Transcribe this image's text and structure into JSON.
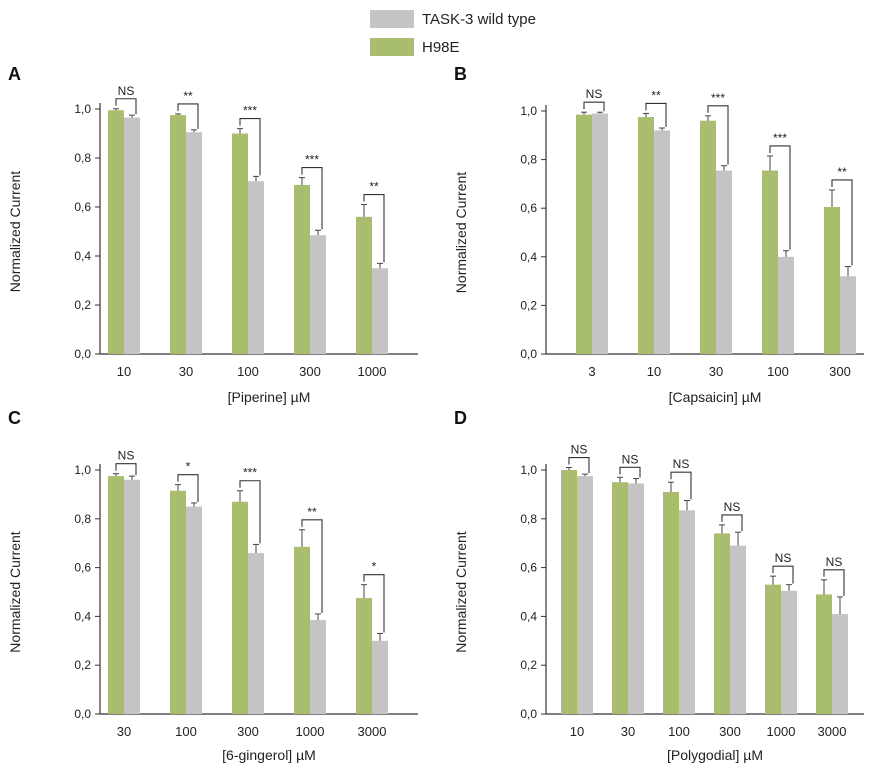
{
  "legend": {
    "items": [
      {
        "label": "TASK-3 wild type",
        "color": "#c4c4c4"
      },
      {
        "label": "H98E",
        "color": "#a8bd6e"
      }
    ]
  },
  "colors": {
    "h98e": "#a8bd6e",
    "wt": "#c4c4c4",
    "axis": "#333333",
    "bracket": "#333333"
  },
  "chart_data": [
    {
      "type": "bar",
      "panel_label": "A",
      "title": "",
      "xlabel": "[Piperine] µM",
      "ylabel": "Normalized Current",
      "ylim": [
        0,
        1.0
      ],
      "yticks": [
        "0,0",
        "0,2",
        "0,4",
        "0,6",
        "0,8",
        "1,0"
      ],
      "categories": [
        "10",
        "30",
        "100",
        "300",
        "1000"
      ],
      "series": [
        {
          "name": "H98E",
          "values": [
            0.995,
            0.975,
            0.9,
            0.69,
            0.56
          ],
          "errors": [
            0.006,
            0.005,
            0.02,
            0.03,
            0.05
          ]
        },
        {
          "name": "TASK-3 wild type",
          "values": [
            0.965,
            0.905,
            0.705,
            0.485,
            0.35
          ],
          "errors": [
            0.01,
            0.01,
            0.02,
            0.02,
            0.02
          ]
        }
      ],
      "significance": [
        "NS",
        "**",
        "***",
        "***",
        "**"
      ]
    },
    {
      "type": "bar",
      "panel_label": "B",
      "title": "",
      "xlabel": "[Capsaicin] µM",
      "ylabel": "Normalized Current",
      "ylim": [
        0,
        1.0
      ],
      "yticks": [
        "0,0",
        "0,2",
        "0,4",
        "0,6",
        "0,8",
        "1,0"
      ],
      "categories": [
        "3",
        "10",
        "30",
        "100",
        "300"
      ],
      "series": [
        {
          "name": "H98E",
          "values": [
            0.985,
            0.975,
            0.96,
            0.755,
            0.605
          ],
          "errors": [
            0.01,
            0.015,
            0.02,
            0.06,
            0.07
          ]
        },
        {
          "name": "TASK-3 wild type",
          "values": [
            0.99,
            0.92,
            0.755,
            0.4,
            0.32
          ],
          "errors": [
            0.005,
            0.01,
            0.02,
            0.025,
            0.04
          ]
        }
      ],
      "significance": [
        "NS",
        "**",
        "***",
        "***",
        "**"
      ]
    },
    {
      "type": "bar",
      "panel_label": "C",
      "title": "",
      "xlabel": "[6-gingerol] µM",
      "ylabel": "Normalized Current",
      "ylim": [
        0,
        1.0
      ],
      "yticks": [
        "0,0",
        "0,2",
        "0,4",
        "0,6",
        "0,8",
        "1,0"
      ],
      "categories": [
        "30",
        "100",
        "300",
        "1000",
        "3000"
      ],
      "series": [
        {
          "name": "H98E",
          "values": [
            0.975,
            0.915,
            0.87,
            0.685,
            0.475
          ],
          "errors": [
            0.01,
            0.025,
            0.045,
            0.07,
            0.055
          ]
        },
        {
          "name": "TASK-3 wild type",
          "values": [
            0.96,
            0.85,
            0.66,
            0.385,
            0.3
          ],
          "errors": [
            0.015,
            0.015,
            0.035,
            0.025,
            0.03
          ]
        }
      ],
      "significance": [
        "NS",
        "*",
        "***",
        "**",
        "*"
      ]
    },
    {
      "type": "bar",
      "panel_label": "D",
      "title": "",
      "xlabel": "[Polygodial] µM",
      "ylabel": "Normalized Current",
      "ylim": [
        0,
        1.0
      ],
      "yticks": [
        "0,0",
        "0,2",
        "0,4",
        "0,6",
        "0,8",
        "1,0"
      ],
      "categories": [
        "10",
        "30",
        "100",
        "300",
        "1000",
        "3000"
      ],
      "series": [
        {
          "name": "H98E",
          "values": [
            1.0,
            0.95,
            0.91,
            0.74,
            0.53,
            0.49
          ],
          "errors": [
            0.01,
            0.02,
            0.04,
            0.035,
            0.035,
            0.06
          ]
        },
        {
          "name": "TASK-3 wild type",
          "values": [
            0.975,
            0.945,
            0.835,
            0.69,
            0.505,
            0.41
          ],
          "errors": [
            0.008,
            0.02,
            0.04,
            0.055,
            0.025,
            0.07
          ]
        }
      ],
      "significance": [
        "NS",
        "NS",
        "NS",
        "NS",
        "NS",
        "NS"
      ]
    }
  ]
}
